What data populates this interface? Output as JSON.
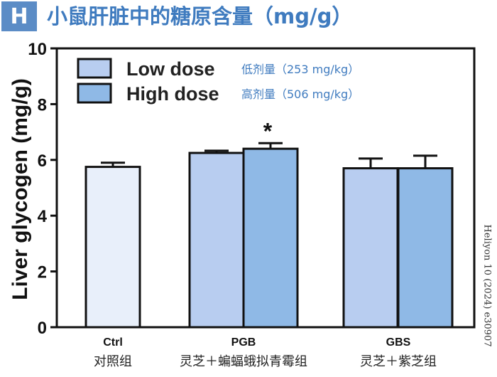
{
  "header": {
    "panel_letter": "H",
    "title": "小鼠肝脏中的糖原含量（mg/g）"
  },
  "credit": "Heliyon 10 (2024) e30907",
  "chart_data": {
    "type": "bar",
    "ylabel": "Liver glycogen (mg/g)",
    "ylim": [
      0,
      10
    ],
    "yticks": [
      0,
      2,
      4,
      6,
      8,
      10
    ],
    "categories": [
      {
        "label": "Ctrl",
        "sublabel": "对照组"
      },
      {
        "label": "PGB",
        "sublabel": "灵芝＋蝙蝠蛾拟青霉组"
      },
      {
        "label": "GBS",
        "sublabel": "灵芝＋紫芝组"
      }
    ],
    "series": [
      {
        "name": "Low dose",
        "note": "低剂量（253 mg/kg）",
        "color": "#b8cdf0"
      },
      {
        "name": "High dose",
        "note": "高剂量（506 mg/kg）",
        "color": "#8fb9e6"
      }
    ],
    "control_color": "#e8effa",
    "bars": [
      {
        "category": "Ctrl",
        "series": "Control",
        "value": 5.75,
        "error": 0.15
      },
      {
        "category": "PGB",
        "series": "Low dose",
        "value": 6.25,
        "error": 0.08
      },
      {
        "category": "PGB",
        "series": "High dose",
        "value": 6.4,
        "error": 0.2,
        "annotation": "*"
      },
      {
        "category": "GBS",
        "series": "Low dose",
        "value": 5.7,
        "error": 0.35
      },
      {
        "category": "GBS",
        "series": "High dose",
        "value": 5.7,
        "error": 0.45
      }
    ],
    "legend_position": "top-left",
    "grid": false
  }
}
